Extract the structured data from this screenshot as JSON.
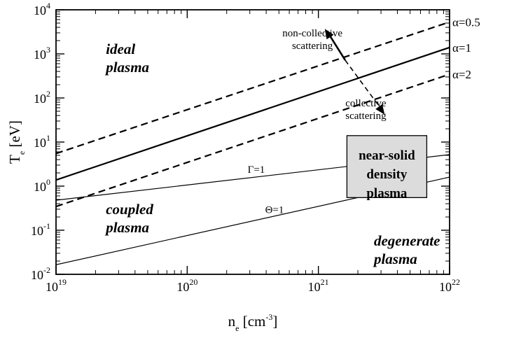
{
  "chart_data": {
    "type": "line",
    "title": "",
    "xlabel": {
      "base": "n",
      "sub": "e",
      "unit_open": " [cm",
      "unit_sup": "-3",
      "unit_close": "]"
    },
    "ylabel": {
      "base": "T",
      "sub": "e",
      "unit": " [eV]"
    },
    "x_scale": "log",
    "y_scale": "log",
    "xlim": [
      1e+19,
      1e+22
    ],
    "ylim": [
      0.01,
      10000
    ],
    "x_ticks": [
      {
        "base": "10",
        "exp": "19",
        "value": 1e+19
      },
      {
        "base": "10",
        "exp": "20",
        "value": 1e+20
      },
      {
        "base": "10",
        "exp": "21",
        "value": 1e+21
      },
      {
        "base": "10",
        "exp": "22",
        "value": 1e+22
      }
    ],
    "y_ticks": [
      {
        "base": "10",
        "exp": "-2",
        "value": 0.01
      },
      {
        "base": "10",
        "exp": "-1",
        "value": 0.1
      },
      {
        "base": "10",
        "exp": "0",
        "value": 1
      },
      {
        "base": "10",
        "exp": "1",
        "value": 10
      },
      {
        "base": "10",
        "exp": "2",
        "value": 100
      },
      {
        "base": "10",
        "exp": "3",
        "value": 1000
      },
      {
        "base": "10",
        "exp": "4",
        "value": 10000
      }
    ],
    "grid": false,
    "series": [
      {
        "key": "alpha05",
        "name": "α=0.5",
        "style": "dashed",
        "weight": "thick",
        "x": [
          1e+19,
          1e+22
        ],
        "y": [
          5.5,
          5300
        ]
      },
      {
        "key": "alpha1",
        "name": "α=1",
        "style": "solid",
        "weight": "thick",
        "x": [
          1e+19,
          1e+22
        ],
        "y": [
          1.38,
          1400
        ]
      },
      {
        "key": "alpha2",
        "name": "α=2",
        "style": "dashed",
        "weight": "thick",
        "x": [
          1e+19,
          1e+22
        ],
        "y": [
          0.345,
          345
        ]
      },
      {
        "key": "gamma1",
        "name": "Γ=1",
        "style": "solid",
        "weight": "thin",
        "x": [
          1e+19,
          1e+22
        ],
        "y": [
          0.48,
          5.2
        ]
      },
      {
        "key": "theta1",
        "name": "Θ=1",
        "style": "solid",
        "weight": "thin",
        "x": [
          1e+19,
          1e+22
        ],
        "y": [
          0.0165,
          1.6
        ]
      }
    ],
    "regions": [
      {
        "key": "ideal",
        "lines": [
          "ideal",
          "plasma"
        ],
        "at": [
          2.4e+19,
          1000
        ]
      },
      {
        "key": "coupled",
        "lines": [
          "coupled",
          "plasma"
        ],
        "at": [
          2.4e+19,
          0.23
        ]
      },
      {
        "key": "degenerate",
        "lines": [
          "degenerate",
          "plasma"
        ],
        "at": [
          2.65e+21,
          0.045
        ]
      }
    ],
    "box": {
      "lines": [
        "near-solid",
        "density",
        "plasma"
      ],
      "x_range": [
        1.65e+21,
        6.7e+21
      ],
      "y_range": [
        0.55,
        14
      ],
      "fill": "#dcdcdc"
    },
    "annotations": {
      "noncollective": {
        "lines": [
          "non-collective",
          "scattering"
        ],
        "at": [
          9e+20,
          2500
        ]
      },
      "collective": {
        "lines": [
          "collective",
          "scattering"
        ],
        "at": [
          2.3e+21,
          65
        ]
      },
      "arrow": {
        "from": [
          1.6e+21,
          720
        ],
        "to": [
          3.2e+21,
          42
        ],
        "tail": [
          1.12e+21,
          3700
        ]
      }
    },
    "colors": {
      "line": "#000000",
      "box_fill": "#dcdcdc",
      "background": "#ffffff"
    }
  }
}
